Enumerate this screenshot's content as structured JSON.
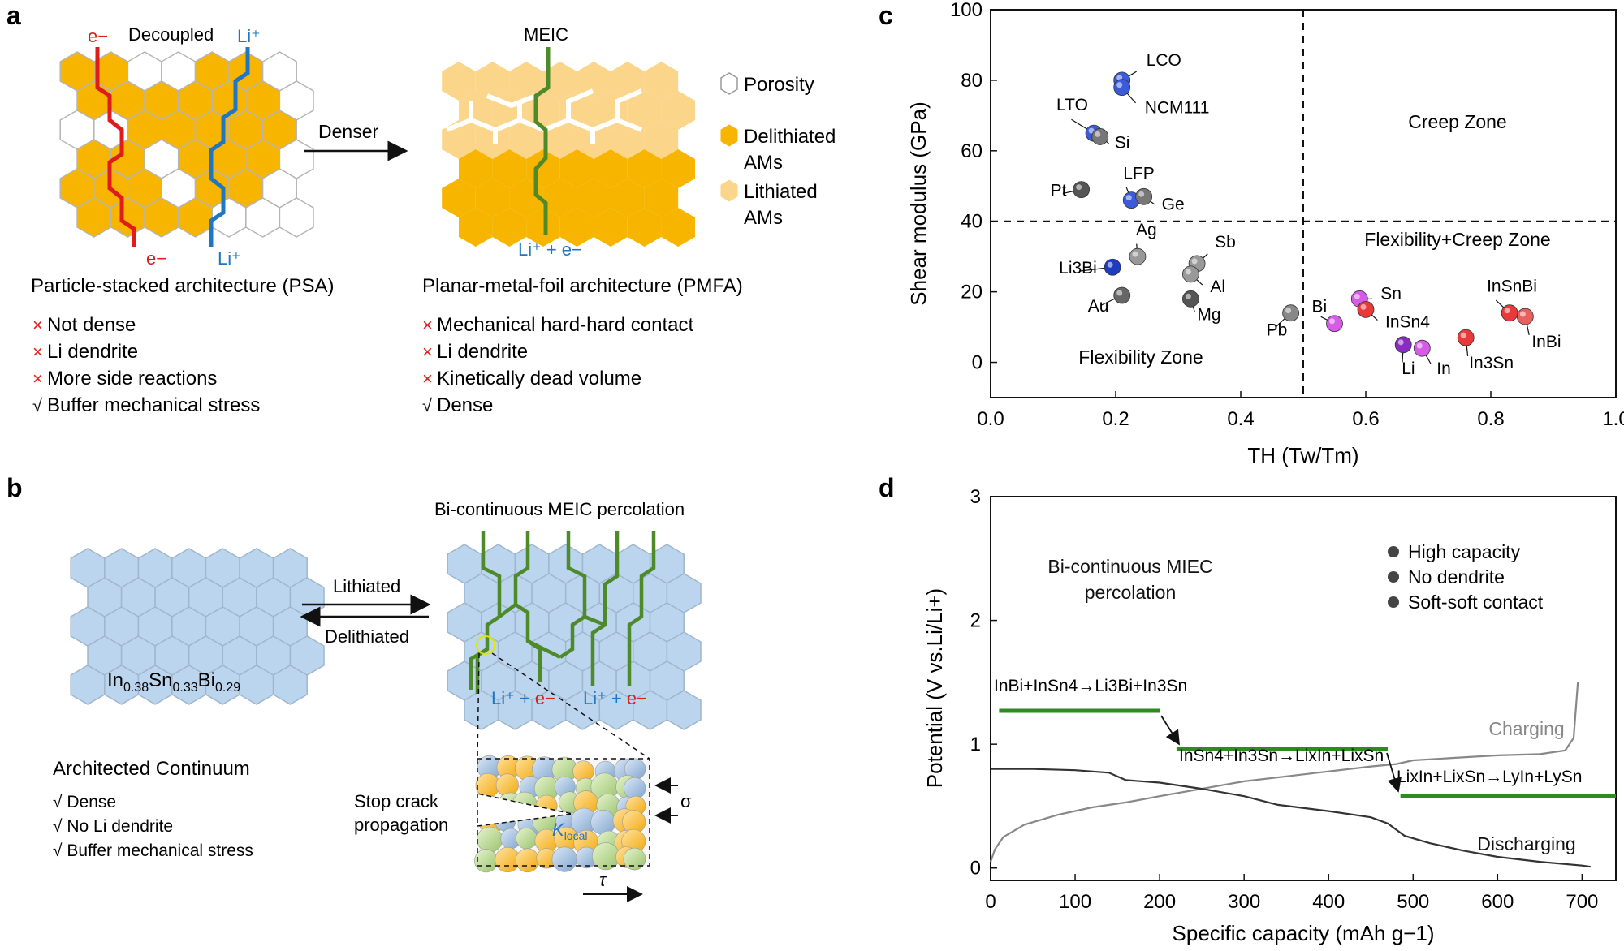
{
  "panel_labels": {
    "a": "a",
    "b": "b",
    "c": "c",
    "d": "d"
  },
  "panel_a": {
    "decoupled": "Decoupled",
    "e_top": "e−",
    "li_top": "Li⁺",
    "e_bottom": "e−",
    "li_bottom": "Li⁺",
    "meic": "MEIC",
    "denser": "Denser",
    "li_e_bottom": "Li⁺ + e−",
    "legend": [
      "Porosity",
      "Delithiated",
      "AMs",
      "Lithiated",
      "AMs"
    ],
    "psa_title": "Particle-stacked architecture (PSA)",
    "pmfa_title": "Planar-metal-foil architecture (PMFA)",
    "psa_list": [
      {
        "mark": "×",
        "text": "Not dense"
      },
      {
        "mark": "×",
        "text": "Li dendrite"
      },
      {
        "mark": "×",
        "text": "More side reactions"
      },
      {
        "mark": "√",
        "text": "Buffer mechanical stress"
      }
    ],
    "pmfa_list": [
      {
        "mark": "×",
        "text": "Mechanical hard-hard contact"
      },
      {
        "mark": "×",
        "text": "Li dendrite"
      },
      {
        "mark": "×",
        "text": "Kinetically dead volume"
      },
      {
        "mark": "√",
        "text": " Dense"
      }
    ],
    "colors": {
      "delithiated": "#f7b500",
      "lithiated": "#fbd58a",
      "porosity": "#ffffff",
      "electron": "#e01b1b",
      "ion": "#1f77c4",
      "meic": "#4e8a2a"
    }
  },
  "panel_b": {
    "title": "Bi-continuous MEIC percolation",
    "lithiated": "Lithiated",
    "delithiated": "Delithiated",
    "formula": "In0.38Sn0.33Bi0.29",
    "li_a": "Li⁺",
    "plus_a": " + ",
    "e_a": "e−",
    "li_b": "Li⁺",
    "plus_b": " + ",
    "e_b": "e−",
    "continuum_title": "Architected Continuum",
    "continuum_list": [
      "√ Dense",
      "√ No Li dendrite",
      "√ Buffer mechanical stress"
    ],
    "stop_crack": [
      "Stop crack",
      "propagation"
    ],
    "sigma": "σ",
    "tau": "τ",
    "k_local": "K",
    "k_sub": "local",
    "colors": {
      "cell": "#bcd5ee",
      "green": "#4e8a2a"
    }
  },
  "chart_data": [
    {
      "type": "scatter",
      "title": "",
      "xlabel": "TH (Tw/Tm)",
      "ylabel": "Shear modulus (GPa)",
      "xlim": [
        0.0,
        1.0
      ],
      "ylim": [
        -10,
        100
      ],
      "xticks": [
        "0.0",
        "0.2",
        "0.4",
        "0.6",
        "0.8",
        "1.0"
      ],
      "yticks": [
        "0",
        "20",
        "40",
        "60",
        "80",
        "100"
      ],
      "divider_x": 0.5,
      "divider_y": 40,
      "zones": [
        "Creep Zone",
        "Flexibility+Creep Zone",
        "Flexibility Zone"
      ],
      "points": [
        {
          "name": "LCO",
          "x": 0.21,
          "y": 80,
          "color": "#3b5bdb"
        },
        {
          "name": "NCM111",
          "x": 0.21,
          "y": 78,
          "color": "#3b5bdb"
        },
        {
          "name": "LTO",
          "x": 0.165,
          "y": 65,
          "color": "#3b5bdb"
        },
        {
          "name": "Si",
          "x": 0.175,
          "y": 64,
          "color": "#777777"
        },
        {
          "name": "Pt",
          "x": 0.145,
          "y": 49,
          "color": "#555555"
        },
        {
          "name": "LFP",
          "x": 0.225,
          "y": 46,
          "color": "#3b5bdb"
        },
        {
          "name": "Ge",
          "x": 0.245,
          "y": 47,
          "color": "#777777"
        },
        {
          "name": "Ag",
          "x": 0.235,
          "y": 30,
          "color": "#999999"
        },
        {
          "name": "Li3Bi",
          "x": 0.195,
          "y": 27,
          "color": "#1f3bbf"
        },
        {
          "name": "Sb",
          "x": 0.33,
          "y": 28,
          "color": "#999999"
        },
        {
          "name": "Al",
          "x": 0.32,
          "y": 25,
          "color": "#999999"
        },
        {
          "name": "Au",
          "x": 0.21,
          "y": 19,
          "color": "#666666"
        },
        {
          "name": "Mg",
          "x": 0.32,
          "y": 18,
          "color": "#555555"
        },
        {
          "name": "Pb",
          "x": 0.48,
          "y": 14,
          "color": "#888888"
        },
        {
          "name": "Bi",
          "x": 0.55,
          "y": 11,
          "color": "#d65ce8"
        },
        {
          "name": "Sn",
          "x": 0.59,
          "y": 18,
          "color": "#d65ce8"
        },
        {
          "name": "InSn4",
          "x": 0.6,
          "y": 15,
          "color": "#e83a3a"
        },
        {
          "name": "Li",
          "x": 0.66,
          "y": 5,
          "color": "#8a2bc4"
        },
        {
          "name": "In",
          "x": 0.69,
          "y": 4,
          "color": "#d65ce8"
        },
        {
          "name": "In3Sn",
          "x": 0.76,
          "y": 7,
          "color": "#e83a3a"
        },
        {
          "name": "InSnBi",
          "x": 0.83,
          "y": 14,
          "color": "#e83a3a"
        },
        {
          "name": "InBi",
          "x": 0.855,
          "y": 13,
          "color": "#e86060"
        }
      ]
    },
    {
      "type": "line",
      "title": "",
      "xlabel": "Specific capacity (mAh g−1)",
      "ylabel": "Potential (V vs.Li/Li+)",
      "xlim": [
        0,
        740
      ],
      "ylim": [
        -0.1,
        3.0
      ],
      "xticks": [
        "0",
        "100",
        "200",
        "300",
        "400",
        "500",
        "600",
        "700"
      ],
      "yticks": [
        "0",
        "1",
        "2",
        "3"
      ],
      "series": [
        {
          "name": "Charging",
          "x": [
            0,
            5,
            15,
            40,
            80,
            120,
            160,
            200,
            250,
            300,
            350,
            400,
            450,
            480,
            500,
            550,
            600,
            650,
            680,
            690,
            695
          ],
          "values": [
            0.05,
            0.15,
            0.25,
            0.35,
            0.43,
            0.49,
            0.53,
            0.58,
            0.64,
            0.7,
            0.74,
            0.78,
            0.82,
            0.84,
            0.87,
            0.89,
            0.91,
            0.92,
            0.95,
            1.05,
            1.5
          ],
          "color": "#888888"
        },
        {
          "name": "Discharging",
          "x": [
            0,
            50,
            100,
            140,
            160,
            200,
            250,
            300,
            340,
            400,
            450,
            470,
            490,
            520,
            560,
            600,
            650,
            700,
            710
          ],
          "values": [
            0.8,
            0.8,
            0.79,
            0.77,
            0.71,
            0.69,
            0.64,
            0.58,
            0.51,
            0.46,
            0.41,
            0.36,
            0.26,
            0.2,
            0.14,
            0.09,
            0.05,
            0.02,
            0.01
          ],
          "color": "#333333"
        }
      ],
      "plateaus": [
        {
          "label": "InBi+InSn4→Li3Bi+In3Sn",
          "x": [
            10,
            200
          ],
          "y": 1.27
        },
        {
          "label": "InSn4+In3Sn→LixIn+LixSn",
          "x": [
            220,
            470
          ],
          "y": 0.96
        },
        {
          "label": "LixIn+LixSn→LyIn+LySn",
          "x": [
            485,
            740
          ],
          "y": 0.58
        }
      ],
      "annotations": [
        "Bi-continuous MIEC",
        "percolation",
        "Charging",
        "Discharging"
      ],
      "legend": [
        "High capacity",
        "No dendrite",
        "Soft-soft contact"
      ]
    }
  ]
}
